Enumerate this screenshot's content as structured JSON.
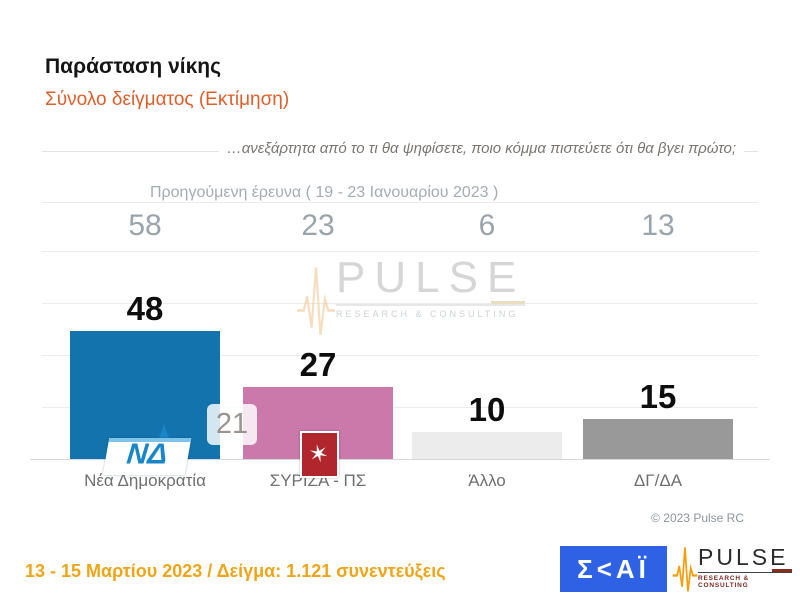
{
  "slide": {
    "title": "Παράσταση νίκης",
    "subtitle": "Σύνολο δείγματος   (Εκτίμηση)",
    "question": "…ανεξάρτητα από το τι θα ψηφίσετε, ποιο κόμμα πιστεύετε ότι θα βγει πρώτο;",
    "previous_survey_label": "Προηγούμενη έρευνα  ( 19 - 23 Ιανουαρίου  2023 )",
    "copyright": "© 2023 Pulse RC",
    "footer_text": "13 - 15  Μαρτίου  2023  /  Δείγμα:  1.121 συνεντεύξεις"
  },
  "chart_data": {
    "type": "bar",
    "title": "Παράσταση νίκης",
    "subtitle": "Σύνολο δείγματος (Εκτίμηση)",
    "categories": [
      "Νέα Δημοκρατία",
      "ΣΥΡΙΖΑ - ΠΣ",
      "Άλλο",
      "ΔΓ/ΔΑ"
    ],
    "values": [
      48,
      27,
      10,
      15
    ],
    "previous_values": [
      58,
      23,
      6,
      13
    ],
    "previous_values_label": "Προηγούμενη έρευνα ( 19 - 23 Ιανουαρίου 2023 )",
    "difference_badge": "21",
    "bar_colors": [
      "#1373ad",
      "#cb79aa",
      "#ececec",
      "#999999"
    ],
    "value_label_color": "#0e0e0e",
    "previous_value_color": "#9aa4ac",
    "ylim": [
      0,
      120
    ],
    "grid": true,
    "gridline_step": 20,
    "legend_position": "none"
  },
  "watermark": {
    "brand": "PULSE",
    "tagline": "RESEARCH & CONSULTING"
  },
  "logos": {
    "skai_text": "Σ<ΑΪ",
    "pulse_brand": "PULSE",
    "pulse_tagline": "RESEARCH & CONSULTING",
    "nd_text": "ΝΔ",
    "syriza_star": "✶"
  }
}
